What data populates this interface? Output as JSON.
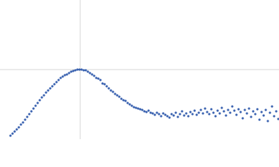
{
  "chart_data": {
    "type": "scatter",
    "color": "#3a62b0",
    "xlim": [
      0,
      4
    ],
    "ylim": [
      0,
      2
    ],
    "xgrid": [
      1.15
    ],
    "ygrid": [
      1.0
    ],
    "x": [
      0.15,
      0.18,
      0.21,
      0.24,
      0.27,
      0.3,
      0.33,
      0.36,
      0.39,
      0.42,
      0.45,
      0.48,
      0.51,
      0.54,
      0.57,
      0.6,
      0.63,
      0.66,
      0.69,
      0.72,
      0.75,
      0.78,
      0.81,
      0.84,
      0.87,
      0.9,
      0.93,
      0.96,
      0.99,
      1.02,
      1.05,
      1.08,
      1.11,
      1.14,
      1.17,
      1.2,
      1.23,
      1.26,
      1.29,
      1.32,
      1.35,
      1.38,
      1.41,
      1.44,
      1.47,
      1.5,
      1.53,
      1.56,
      1.59,
      1.62,
      1.65,
      1.68,
      1.71,
      1.74,
      1.77,
      1.8,
      1.83,
      1.86,
      1.89,
      1.92,
      1.95,
      1.98,
      2.01,
      2.04,
      2.07,
      2.1,
      2.13,
      2.16,
      2.19,
      2.22,
      2.25,
      2.28,
      2.31,
      2.34,
      2.37,
      2.4,
      2.43,
      2.46,
      2.49,
      2.52,
      2.55,
      2.58,
      2.61,
      2.64,
      2.67,
      2.7,
      2.73,
      2.76,
      2.79,
      2.82,
      2.85,
      2.88,
      2.91,
      2.94,
      2.97,
      3.0,
      3.03,
      3.06,
      3.09,
      3.12,
      3.15,
      3.18,
      3.21,
      3.24,
      3.27,
      3.3,
      3.33,
      3.36,
      3.39,
      3.42,
      3.45,
      3.48,
      3.51,
      3.54,
      3.57,
      3.6,
      3.63,
      3.66,
      3.69,
      3.72,
      3.75,
      3.78,
      3.81,
      3.84,
      3.87,
      3.9,
      3.93,
      3.96,
      3.99
    ],
    "y": [
      0.05,
      0.08,
      0.11,
      0.14,
      0.17,
      0.21,
      0.24,
      0.28,
      0.32,
      0.36,
      0.4,
      0.44,
      0.48,
      0.52,
      0.56,
      0.6,
      0.63,
      0.67,
      0.7,
      0.73,
      0.76,
      0.79,
      0.82,
      0.85,
      0.88,
      0.9,
      0.92,
      0.93,
      0.95,
      0.97,
      0.98,
      0.99,
      1.0,
      1.0,
      1.0,
      0.99,
      0.99,
      0.97,
      0.95,
      0.93,
      0.91,
      0.88,
      0.87,
      0.85,
      0.8,
      0.79,
      0.76,
      0.73,
      0.7,
      0.68,
      0.65,
      0.63,
      0.61,
      0.58,
      0.56,
      0.55,
      0.52,
      0.5,
      0.48,
      0.46,
      0.45,
      0.44,
      0.43,
      0.42,
      0.4,
      0.39,
      0.41,
      0.38,
      0.37,
      0.35,
      0.38,
      0.36,
      0.33,
      0.37,
      0.35,
      0.33,
      0.31,
      0.36,
      0.34,
      0.38,
      0.32,
      0.36,
      0.4,
      0.34,
      0.37,
      0.33,
      0.39,
      0.36,
      0.41,
      0.35,
      0.38,
      0.42,
      0.37,
      0.44,
      0.39,
      0.36,
      0.43,
      0.38,
      0.33,
      0.41,
      0.37,
      0.45,
      0.4,
      0.34,
      0.42,
      0.38,
      0.47,
      0.41,
      0.35,
      0.43,
      0.39,
      0.3,
      0.42,
      0.37,
      0.44,
      0.32,
      0.4,
      0.36,
      0.43,
      0.28,
      0.39,
      0.34,
      0.42,
      0.26,
      0.38,
      0.47,
      0.33,
      0.4,
      0.29
    ]
  }
}
